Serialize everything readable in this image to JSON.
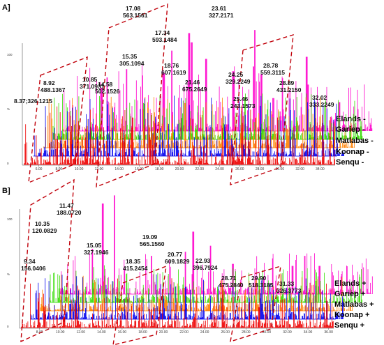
{
  "chart_data": [
    {
      "type": "line",
      "panel_label": "A]",
      "x_ticks": [
        "6.00",
        "8.00",
        "10.00",
        "12.00",
        "14.00",
        "16.00",
        "18.00",
        "20.00",
        "22.00",
        "24.00",
        "26.00",
        "28.00",
        "30.00",
        "32.00",
        "34.00"
      ],
      "xlim": [
        4.5,
        35.5
      ],
      "y_ticks": [
        "100",
        "%",
        "0"
      ],
      "series": [
        {
          "name": "Elands -",
          "color": "#ff00cc"
        },
        {
          "name": "Gariep -",
          "color": "#33dd00"
        },
        {
          "name": "Matlabas -",
          "color": "#ff8000"
        },
        {
          "name": "Koonap -",
          "color": "#0000ee"
        },
        {
          "name": "Senqu -",
          "color": "#ee0000"
        }
      ],
      "peaks": [
        {
          "x": 8.37,
          "y": 0.42,
          "rt": "8.37;326.1215",
          "mz": ""
        },
        {
          "x": 8.92,
          "y": 0.52,
          "rt": "8.92",
          "mz": "488.1367"
        },
        {
          "x": 10.85,
          "y": 0.6,
          "rt": "10.85",
          "mz": "371.0931"
        },
        {
          "x": 14.58,
          "y": 0.56,
          "rt": "14.58",
          "mz": "502.1526"
        },
        {
          "x": 15.35,
          "y": 0.78,
          "rt": "15.35",
          "mz": "305.1094"
        },
        {
          "x": 17.08,
          "y": 0.95,
          "rt": "17.08",
          "mz": "563.1561"
        },
        {
          "x": 17.34,
          "y": 0.86,
          "rt": "17.34",
          "mz": "593.1484"
        },
        {
          "x": 18.76,
          "y": 0.7,
          "rt": "18.76",
          "mz": "607.1619"
        },
        {
          "x": 21.46,
          "y": 0.58,
          "rt": "21.46",
          "mz": "675.2649"
        },
        {
          "x": 23.61,
          "y": 0.98,
          "rt": "23.61",
          "mz": "327.2171"
        },
        {
          "x": 24.25,
          "y": 0.55,
          "rt": "24.25",
          "mz": "329.2249"
        },
        {
          "x": 25.46,
          "y": 0.32,
          "rt": "25.46",
          "mz": "243.1573"
        },
        {
          "x": 28.78,
          "y": 0.72,
          "rt": "28.78",
          "mz": "559.3115"
        },
        {
          "x": 28.89,
          "y": 0.45,
          "rt": "28.89",
          "mz": "431.2150"
        },
        {
          "x": 32.02,
          "y": 0.28,
          "rt": "32.02",
          "mz": "333.2249"
        }
      ]
    },
    {
      "type": "line",
      "panel_label": "B]",
      "x_ticks": [
        "8.00",
        "10.00",
        "12.00",
        "14.00",
        "16.00",
        "18.00",
        "20.00",
        "22.00",
        "24.00",
        "26.00",
        "28.00",
        "30.00",
        "32.00",
        "34.00",
        "36.00"
      ],
      "xlim": [
        6.2,
        36.5
      ],
      "y_ticks": [
        "100",
        "%",
        "0"
      ],
      "series": [
        {
          "name": "Elands +",
          "color": "#ff00cc"
        },
        {
          "name": "Gariep +",
          "color": "#33dd00"
        },
        {
          "name": "Matlabas +",
          "color": "#ff8000"
        },
        {
          "name": "Koonap +",
          "color": "#0000ee"
        },
        {
          "name": "Senqu +",
          "color": "#ee0000"
        }
      ],
      "peaks": [
        {
          "x": 9.34,
          "y": 0.45,
          "rt": "9.34",
          "mz": "156.0406"
        },
        {
          "x": 10.35,
          "y": 0.9,
          "rt": "10.35",
          "mz": "120.0829"
        },
        {
          "x": 11.47,
          "y": 0.98,
          "rt": "11.47",
          "mz": "188.0720"
        },
        {
          "x": 15.05,
          "y": 0.38,
          "rt": "15.05",
          "mz": "327.1946"
        },
        {
          "x": 18.35,
          "y": 0.42,
          "rt": "18.35",
          "mz": "415.2454"
        },
        {
          "x": 19.09,
          "y": 0.62,
          "rt": "19.09",
          "mz": "565.1560"
        },
        {
          "x": 20.77,
          "y": 0.48,
          "rt": "20.77",
          "mz": "609.1829"
        },
        {
          "x": 22.93,
          "y": 0.3,
          "rt": "22.93",
          "mz": "396.7924"
        },
        {
          "x": 28.71,
          "y": 0.28,
          "rt": "28.71",
          "mz": "475.2840"
        },
        {
          "x": 29.9,
          "y": 0.38,
          "rt": "29.90",
          "mz": "518.3185"
        },
        {
          "x": 31.33,
          "y": 0.28,
          "rt": "31.33",
          "mz": "326.3773"
        }
      ]
    }
  ]
}
